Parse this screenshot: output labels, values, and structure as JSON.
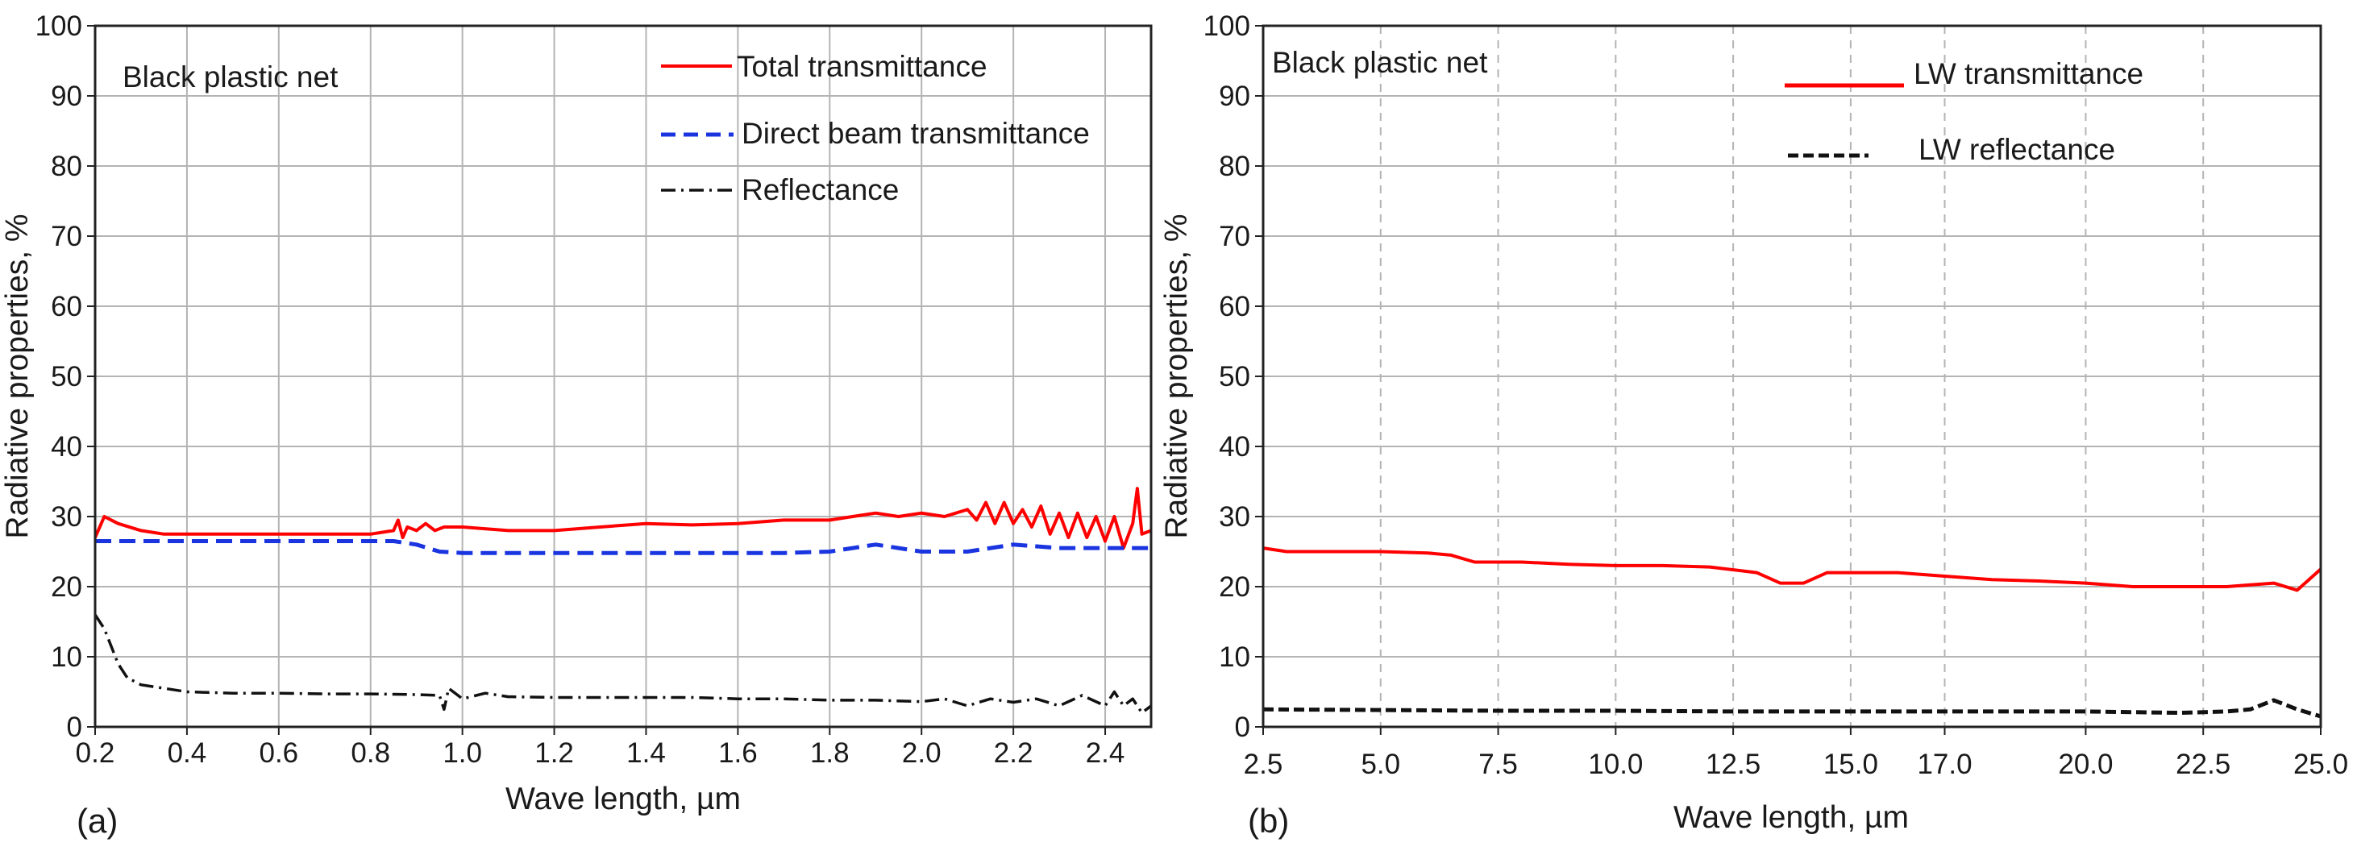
{
  "chart_data": [
    {
      "type": "line",
      "panel_label": "(a)",
      "annotation": "Black plastic net",
      "xlabel": "Wave length, µm",
      "ylabel": "Radiative properties, %",
      "xlim": [
        0.2,
        2.5
      ],
      "ylim": [
        0,
        100
      ],
      "x_ticks": [
        "0.2",
        "0.4",
        "0.6",
        "0.8",
        "1.0",
        "1.2",
        "1.4",
        "1.6",
        "1.8",
        "2.0",
        "2.2",
        "2.4"
      ],
      "y_ticks": [
        "0",
        "10",
        "20",
        "30",
        "40",
        "50",
        "60",
        "70",
        "80",
        "90",
        "100"
      ],
      "grid": "solid",
      "legend_position": "top-right",
      "series": [
        {
          "name": "Total transmittance",
          "color": "#ff0000",
          "style": "solid",
          "x": [
            0.2,
            0.22,
            0.25,
            0.3,
            0.35,
            0.4,
            0.5,
            0.6,
            0.7,
            0.8,
            0.85,
            0.86,
            0.87,
            0.88,
            0.9,
            0.92,
            0.94,
            0.96,
            1.0,
            1.1,
            1.2,
            1.3,
            1.4,
            1.5,
            1.6,
            1.7,
            1.8,
            1.85,
            1.9,
            1.95,
            2.0,
            2.05,
            2.1,
            2.12,
            2.14,
            2.16,
            2.18,
            2.2,
            2.22,
            2.24,
            2.26,
            2.28,
            2.3,
            2.32,
            2.34,
            2.36,
            2.38,
            2.4,
            2.42,
            2.44,
            2.46,
            2.47,
            2.48,
            2.5
          ],
          "values": [
            27.0,
            30.0,
            29.0,
            28.0,
            27.5,
            27.5,
            27.5,
            27.5,
            27.5,
            27.5,
            28.0,
            29.5,
            27.0,
            28.5,
            28.0,
            29.0,
            28.0,
            28.5,
            28.5,
            28.0,
            28.0,
            28.5,
            29.0,
            28.8,
            29.0,
            29.5,
            29.5,
            30.0,
            30.5,
            30.0,
            30.5,
            30.0,
            31.0,
            29.5,
            32.0,
            29.0,
            32.0,
            29.0,
            31.0,
            28.5,
            31.5,
            27.5,
            30.5,
            27.0,
            30.5,
            27.0,
            30.0,
            26.5,
            30.0,
            25.5,
            29.0,
            34.0,
            27.5,
            28.0
          ]
        },
        {
          "name": "Direct beam transmittance",
          "color": "#1a35e0",
          "style": "dashed",
          "x": [
            0.2,
            0.25,
            0.3,
            0.4,
            0.5,
            0.6,
            0.7,
            0.8,
            0.85,
            0.9,
            0.95,
            1.0,
            1.1,
            1.2,
            1.3,
            1.35,
            1.4,
            1.5,
            1.6,
            1.7,
            1.8,
            1.85,
            1.9,
            1.95,
            2.0,
            2.1,
            2.2,
            2.3,
            2.4,
            2.5
          ],
          "values": [
            26.5,
            26.5,
            26.5,
            26.5,
            26.5,
            26.5,
            26.5,
            26.5,
            26.5,
            26.0,
            25.0,
            24.8,
            24.8,
            24.8,
            24.8,
            24.8,
            24.8,
            24.8,
            24.8,
            24.8,
            25.0,
            25.5,
            26.0,
            25.5,
            25.0,
            25.0,
            26.0,
            25.5,
            25.5,
            25.5
          ]
        },
        {
          "name": "Reflectance",
          "color": "#111111",
          "style": "dashdot",
          "x": [
            0.2,
            0.22,
            0.25,
            0.27,
            0.3,
            0.35,
            0.4,
            0.5,
            0.6,
            0.7,
            0.8,
            0.9,
            0.95,
            0.96,
            0.97,
            1.0,
            1.05,
            1.1,
            1.2,
            1.3,
            1.4,
            1.5,
            1.6,
            1.7,
            1.8,
            1.9,
            2.0,
            2.05,
            2.1,
            2.15,
            2.2,
            2.25,
            2.3,
            2.35,
            2.4,
            2.42,
            2.44,
            2.46,
            2.48,
            2.5
          ],
          "values": [
            16.0,
            14.0,
            9.0,
            7.0,
            6.0,
            5.5,
            5.0,
            4.8,
            4.8,
            4.7,
            4.7,
            4.6,
            4.5,
            2.5,
            5.5,
            4.0,
            4.8,
            4.3,
            4.2,
            4.2,
            4.2,
            4.2,
            4.0,
            4.0,
            3.8,
            3.8,
            3.6,
            4.0,
            3.0,
            4.0,
            3.5,
            4.0,
            3.0,
            4.5,
            3.0,
            5.0,
            3.0,
            4.0,
            2.0,
            3.0
          ]
        }
      ]
    },
    {
      "type": "line",
      "panel_label": "(b)",
      "annotation": "Black plastic net",
      "xlabel": "Wave length, µm",
      "ylabel": "Radiative properties, %",
      "xlim": [
        2.5,
        25.0
      ],
      "ylim": [
        0,
        100
      ],
      "x_ticks": [
        "2.5",
        "5.0",
        "7.5",
        "10.0",
        "12.5",
        "15.0",
        "17.0",
        "20.0",
        "22.5",
        "25.0"
      ],
      "y_ticks": [
        "0",
        "10",
        "20",
        "30",
        "40",
        "50",
        "60",
        "70",
        "80",
        "90",
        "100"
      ],
      "grid": "horizontal solid, vertical dashed",
      "legend_position": "top-right",
      "series": [
        {
          "name": "LW transmittance",
          "color": "#ff0000",
          "style": "solid",
          "x": [
            2.5,
            3.0,
            3.5,
            4.0,
            5.0,
            6.0,
            6.5,
            7.0,
            7.5,
            8.0,
            9.0,
            10.0,
            11.0,
            12.0,
            13.0,
            13.5,
            14.0,
            14.5,
            15.0,
            16.0,
            17.0,
            18.0,
            19.0,
            20.0,
            21.0,
            22.0,
            23.0,
            24.0,
            24.5,
            25.0
          ],
          "values": [
            25.5,
            25.0,
            25.0,
            25.0,
            25.0,
            24.8,
            24.5,
            23.5,
            23.5,
            23.5,
            23.2,
            23.0,
            23.0,
            22.8,
            22.0,
            20.5,
            20.5,
            22.0,
            22.0,
            22.0,
            21.5,
            21.0,
            20.8,
            20.5,
            20.0,
            20.0,
            20.0,
            20.5,
            19.5,
            22.5
          ]
        },
        {
          "name": "LW reflectance",
          "color": "#111111",
          "style": "dashed",
          "x": [
            2.5,
            5.0,
            7.5,
            10.0,
            12.5,
            15.0,
            17.5,
            20.0,
            22.0,
            23.0,
            23.5,
            24.0,
            24.5,
            25.0
          ],
          "values": [
            2.5,
            2.4,
            2.3,
            2.3,
            2.2,
            2.2,
            2.2,
            2.2,
            2.0,
            2.2,
            2.5,
            3.8,
            2.5,
            1.5
          ]
        }
      ]
    }
  ]
}
